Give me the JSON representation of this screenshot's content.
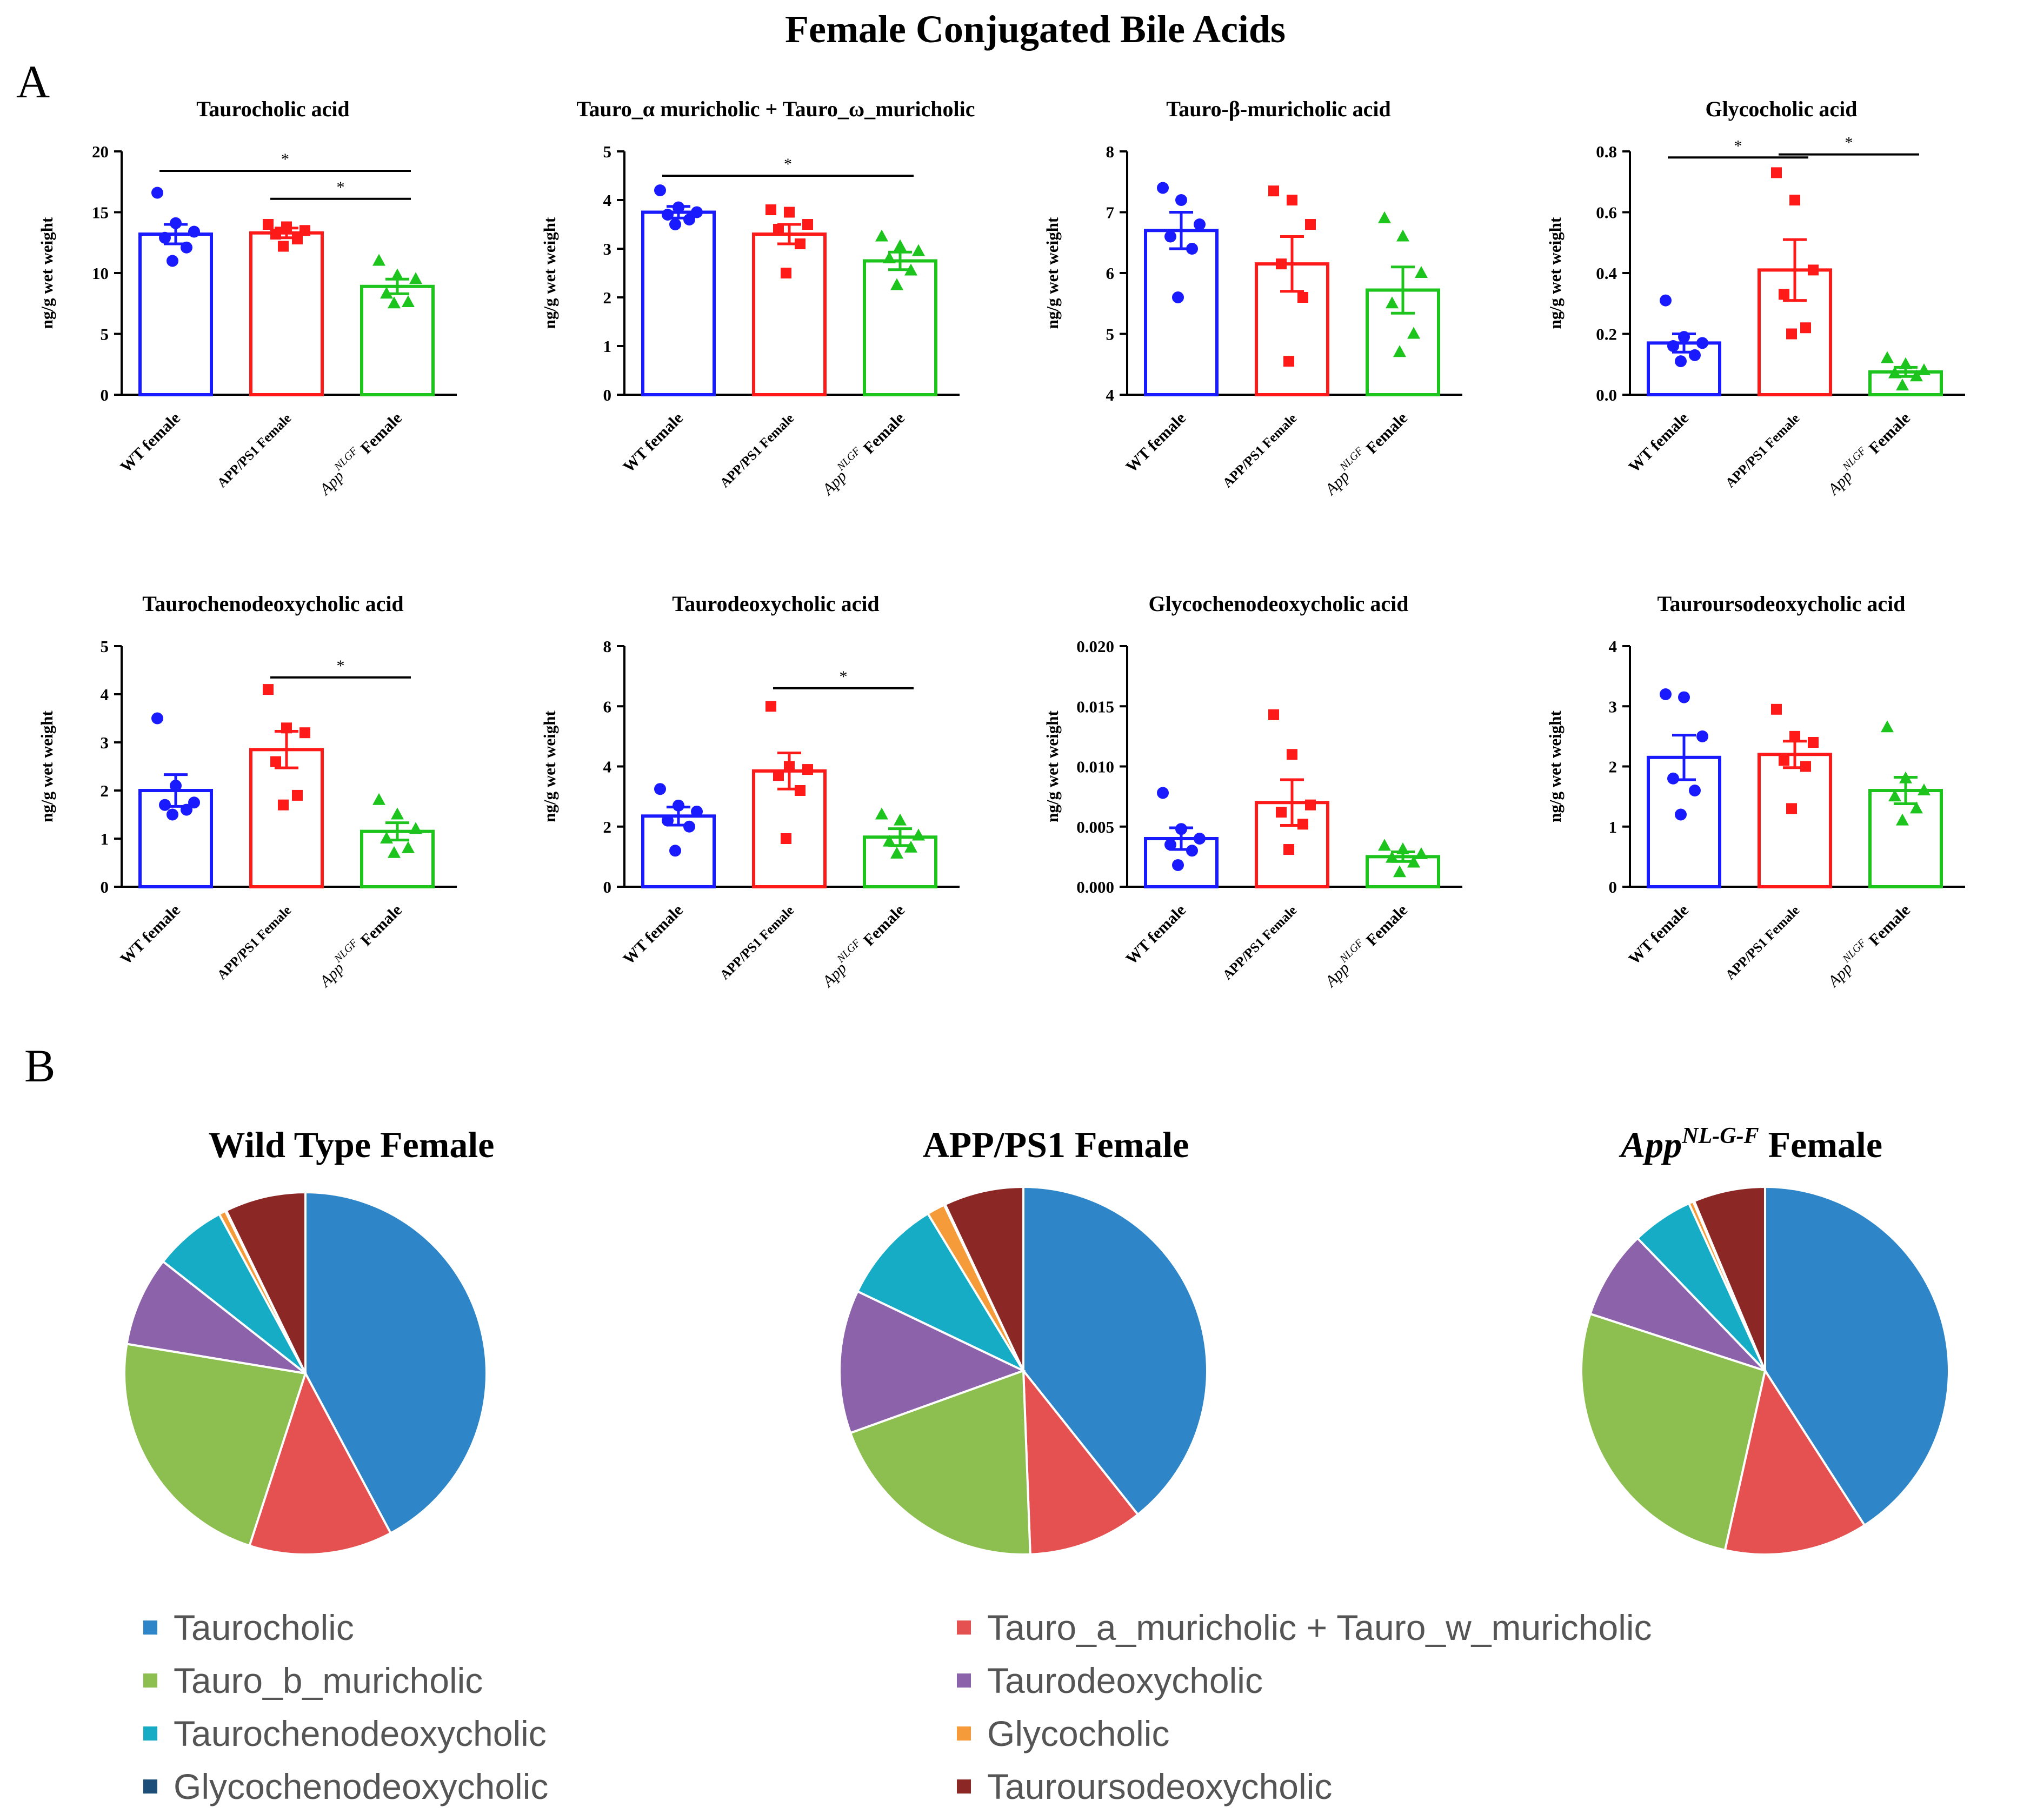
{
  "figure": {
    "title": "Female Conjugated Bile Acids",
    "panel_a_label": "A",
    "panel_b_label": "B"
  },
  "colors": {
    "wt": "#1a1aff",
    "app": "#ff1a1a",
    "nlgf": "#1ec41e"
  },
  "group_labels": {
    "wt": "WT female",
    "app": "APP/PS1 Female",
    "nlgf_main": "App",
    "nlgf_sup": "NLGF",
    "nlgf_tail": "Female"
  },
  "chart_data": [
    {
      "type": "bar",
      "title": "Taurocholic acid",
      "ylabel": "ng/g wet weight",
      "ylim": [
        0,
        20
      ],
      "ticks": [
        0,
        5,
        10,
        15,
        20
      ],
      "tick_labels": [
        "0",
        "5",
        "10",
        "15",
        "20"
      ],
      "series": [
        {
          "name": "WT female",
          "mean": 13.2,
          "sem": 0.8,
          "points": [
            16.6,
            14.1,
            13.4,
            12.9,
            12.1,
            11.0
          ]
        },
        {
          "name": "APP/PS1 Female",
          "mean": 13.3,
          "sem": 0.4,
          "points": [
            14.0,
            13.8,
            13.5,
            13.2,
            12.8,
            12.2
          ]
        },
        {
          "name": "AppNLGF Female",
          "mean": 8.9,
          "sem": 0.6,
          "points": [
            11.0,
            9.8,
            9.5,
            8.3,
            7.6,
            7.5
          ]
        }
      ],
      "sig": [
        {
          "from": 0,
          "to": 2,
          "label": "*",
          "y": 18.4
        },
        {
          "from": 1,
          "to": 2,
          "label": "*",
          "y": 16.1
        }
      ]
    },
    {
      "type": "bar",
      "title": "Tauro_α muricholic + Tauro_ω_muricholic",
      "ylabel": "ng/g wet weight",
      "ylim": [
        0,
        5
      ],
      "ticks": [
        0,
        1,
        2,
        3,
        4,
        5
      ],
      "tick_labels": [
        "0",
        "1",
        "2",
        "3",
        "4",
        "5"
      ],
      "series": [
        {
          "name": "WT female",
          "mean": 3.75,
          "sem": 0.12,
          "points": [
            4.2,
            3.85,
            3.75,
            3.7,
            3.6,
            3.5
          ]
        },
        {
          "name": "APP/PS1 Female",
          "mean": 3.3,
          "sem": 0.2,
          "points": [
            3.8,
            3.75,
            3.5,
            3.4,
            3.1,
            2.5
          ]
        },
        {
          "name": "AppNLGF Female",
          "mean": 2.75,
          "sem": 0.18,
          "points": [
            3.25,
            3.05,
            2.95,
            2.8,
            2.55,
            2.25
          ]
        }
      ],
      "sig": [
        {
          "from": 0,
          "to": 2,
          "label": "*",
          "y": 4.5
        }
      ]
    },
    {
      "type": "bar",
      "title": "Tauro-β-muricholic acid",
      "ylabel": "ng/g wet weight",
      "ylim": [
        4,
        8
      ],
      "ticks": [
        4,
        5,
        6,
        7,
        8
      ],
      "tick_labels": [
        "4",
        "5",
        "6",
        "7",
        "8"
      ],
      "series": [
        {
          "name": "WT female",
          "mean": 6.7,
          "sem": 0.3,
          "points": [
            7.4,
            7.2,
            6.8,
            6.6,
            6.4,
            5.6
          ]
        },
        {
          "name": "APP/PS1 Female",
          "mean": 6.15,
          "sem": 0.45,
          "points": [
            7.35,
            7.2,
            6.8,
            6.15,
            5.6,
            4.55
          ]
        },
        {
          "name": "AppNLGF Female",
          "mean": 5.72,
          "sem": 0.38,
          "points": [
            6.9,
            6.6,
            6.0,
            5.5,
            5.0,
            4.7
          ]
        }
      ],
      "sig": []
    },
    {
      "type": "bar",
      "title": "Glycocholic acid",
      "ylabel": "ng/g wet weight",
      "ylim": [
        0,
        0.8
      ],
      "ticks": [
        0,
        0.2,
        0.4,
        0.6,
        0.8
      ],
      "tick_labels": [
        "0.0",
        "0.2",
        "0.4",
        "0.6",
        "0.8"
      ],
      "series": [
        {
          "name": "WT female",
          "mean": 0.17,
          "sem": 0.03,
          "points": [
            0.31,
            0.19,
            0.17,
            0.16,
            0.13,
            0.11
          ]
        },
        {
          "name": "APP/PS1 Female",
          "mean": 0.41,
          "sem": 0.1,
          "points": [
            0.73,
            0.64,
            0.41,
            0.33,
            0.22,
            0.2
          ]
        },
        {
          "name": "AppNLGF Female",
          "mean": 0.075,
          "sem": 0.015,
          "points": [
            0.12,
            0.1,
            0.08,
            0.07,
            0.06,
            0.03
          ]
        }
      ],
      "sig": [
        {
          "from": 0,
          "to": 1,
          "label": "*",
          "y": 0.78
        },
        {
          "from": 1,
          "to": 2,
          "label": "*",
          "y": 0.79
        }
      ]
    },
    {
      "type": "bar",
      "title": "Taurochenodeoxycholic acid",
      "ylabel": "ng/g wet weight",
      "ylim": [
        0,
        5
      ],
      "ticks": [
        0,
        1,
        2,
        3,
        4,
        5
      ],
      "tick_labels": [
        "0",
        "1",
        "2",
        "3",
        "4",
        "5"
      ],
      "series": [
        {
          "name": "WT female",
          "mean": 2.0,
          "sem": 0.33,
          "points": [
            3.5,
            2.1,
            1.75,
            1.7,
            1.6,
            1.5
          ]
        },
        {
          "name": "APP/PS1 Female",
          "mean": 2.85,
          "sem": 0.38,
          "points": [
            4.1,
            3.3,
            3.2,
            2.6,
            1.9,
            1.7
          ]
        },
        {
          "name": "AppNLGF Female",
          "mean": 1.15,
          "sem": 0.18,
          "points": [
            1.8,
            1.5,
            1.2,
            1.0,
            0.8,
            0.7
          ]
        }
      ],
      "sig": [
        {
          "from": 1,
          "to": 2,
          "label": "*",
          "y": 4.35
        }
      ]
    },
    {
      "type": "bar",
      "title": "Taurodeoxycholic acid",
      "ylabel": "ng/g wet weight",
      "ylim": [
        0,
        8
      ],
      "ticks": [
        0,
        2,
        4,
        6,
        8
      ],
      "tick_labels": [
        "0",
        "2",
        "4",
        "6",
        "8"
      ],
      "series": [
        {
          "name": "WT female",
          "mean": 2.35,
          "sem": 0.3,
          "points": [
            3.25,
            2.7,
            2.5,
            2.2,
            2.0,
            1.2
          ]
        },
        {
          "name": "APP/PS1 Female",
          "mean": 3.85,
          "sem": 0.6,
          "points": [
            6.0,
            4.0,
            3.9,
            3.7,
            3.2,
            1.6
          ]
        },
        {
          "name": "AppNLGF Female",
          "mean": 1.65,
          "sem": 0.28,
          "points": [
            2.4,
            2.2,
            1.7,
            1.5,
            1.3,
            1.1
          ]
        }
      ],
      "sig": [
        {
          "from": 1,
          "to": 2,
          "label": "*",
          "y": 6.6
        }
      ]
    },
    {
      "type": "bar",
      "title": "Glycochenodeoxycholic acid",
      "ylabel": "ng/g wet weight",
      "ylim": [
        0,
        0.02
      ],
      "ticks": [
        0,
        0.005,
        0.01,
        0.015,
        0.02
      ],
      "tick_labels": [
        "0.000",
        "0.005",
        "0.010",
        "0.015",
        "0.020"
      ],
      "series": [
        {
          "name": "WT female",
          "mean": 0.004,
          "sem": 0.0009,
          "points": [
            0.0078,
            0.0048,
            0.004,
            0.0035,
            0.003,
            0.0018
          ]
        },
        {
          "name": "APP/PS1 Female",
          "mean": 0.007,
          "sem": 0.0019,
          "points": [
            0.0143,
            0.011,
            0.0068,
            0.0062,
            0.0052,
            0.0031
          ]
        },
        {
          "name": "AppNLGF Female",
          "mean": 0.0025,
          "sem": 0.0004,
          "points": [
            0.0034,
            0.0031,
            0.0027,
            0.0024,
            0.002,
            0.0012
          ]
        }
      ],
      "sig": []
    },
    {
      "type": "bar",
      "title": "Tauroursodeoxycholic acid",
      "ylabel": "ng/g wet weight",
      "ylim": [
        0,
        4
      ],
      "ticks": [
        0,
        1,
        2,
        3,
        4
      ],
      "tick_labels": [
        "0",
        "1",
        "2",
        "3",
        "4"
      ],
      "series": [
        {
          "name": "WT female",
          "mean": 2.15,
          "sem": 0.37,
          "points": [
            3.2,
            3.15,
            2.5,
            1.8,
            1.6,
            1.2
          ]
        },
        {
          "name": "APP/PS1 Female",
          "mean": 2.2,
          "sem": 0.22,
          "points": [
            2.95,
            2.5,
            2.4,
            2.1,
            2.0,
            1.3
          ]
        },
        {
          "name": "AppNLGF Female",
          "mean": 1.6,
          "sem": 0.22,
          "points": [
            2.65,
            1.8,
            1.6,
            1.5,
            1.3,
            1.1
          ]
        }
      ],
      "sig": []
    },
    {
      "type": "pie",
      "title": "Wild Type Female",
      "labels": [
        "Taurocholic",
        "Tauro_a_muricholic + Tauro_w_muricholic",
        "Tauro_b_muricholic",
        "Taurodeoxycholic",
        "Taurochenodeoxycholic",
        "Glycocholic",
        "Glycochenodeoxycholic",
        "Tauroursodeoxycholic"
      ],
      "values": [
        42.2,
        12.8,
        22.6,
        8.0,
        6.5,
        0.6,
        0.1,
        7.2
      ]
    },
    {
      "type": "pie",
      "title": "APP/PS1 Female",
      "labels": [
        "Taurocholic",
        "Tauro_a_muricholic + Tauro_w_muricholic",
        "Tauro_b_muricholic",
        "Taurodeoxycholic",
        "Taurochenodeoxycholic",
        "Glycocholic",
        "Glycochenodeoxycholic",
        "Tauroursodeoxycholic"
      ],
      "values": [
        39.3,
        10.1,
        20.1,
        12.6,
        9.2,
        1.6,
        0.1,
        7.0
      ]
    },
    {
      "type": "pie",
      "title": "App",
      "title_sup": "NL-G-F",
      "title_tail": "Female",
      "labels": [
        "Taurocholic",
        "Tauro_a_muricholic + Tauro_w_muricholic",
        "Tauro_b_muricholic",
        "Taurodeoxycholic",
        "Taurochenodeoxycholic",
        "Glycocholic",
        "Glycochenodeoxycholic",
        "Tauroursodeoxycholic"
      ],
      "values": [
        40.9,
        12.6,
        26.5,
        7.8,
        5.4,
        0.4,
        0.1,
        6.3
      ]
    }
  ],
  "pie_colors": [
    "#2e86c8",
    "#e55050",
    "#8cbf4f",
    "#8c62aa",
    "#17acc6",
    "#f59b3a",
    "#1b4f7a",
    "#8b2826"
  ],
  "legend": [
    {
      "label": "Taurocholic"
    },
    {
      "label": "Tauro_a_muricholic + Tauro_w_muricholic"
    },
    {
      "label": "Tauro_b_muricholic"
    },
    {
      "label": "Taurodeoxycholic"
    },
    {
      "label": "Taurochenodeoxycholic"
    },
    {
      "label": "Glycocholic"
    },
    {
      "label": "Glycochenodeoxycholic"
    },
    {
      "label": "Tauroursodeoxycholic"
    }
  ]
}
